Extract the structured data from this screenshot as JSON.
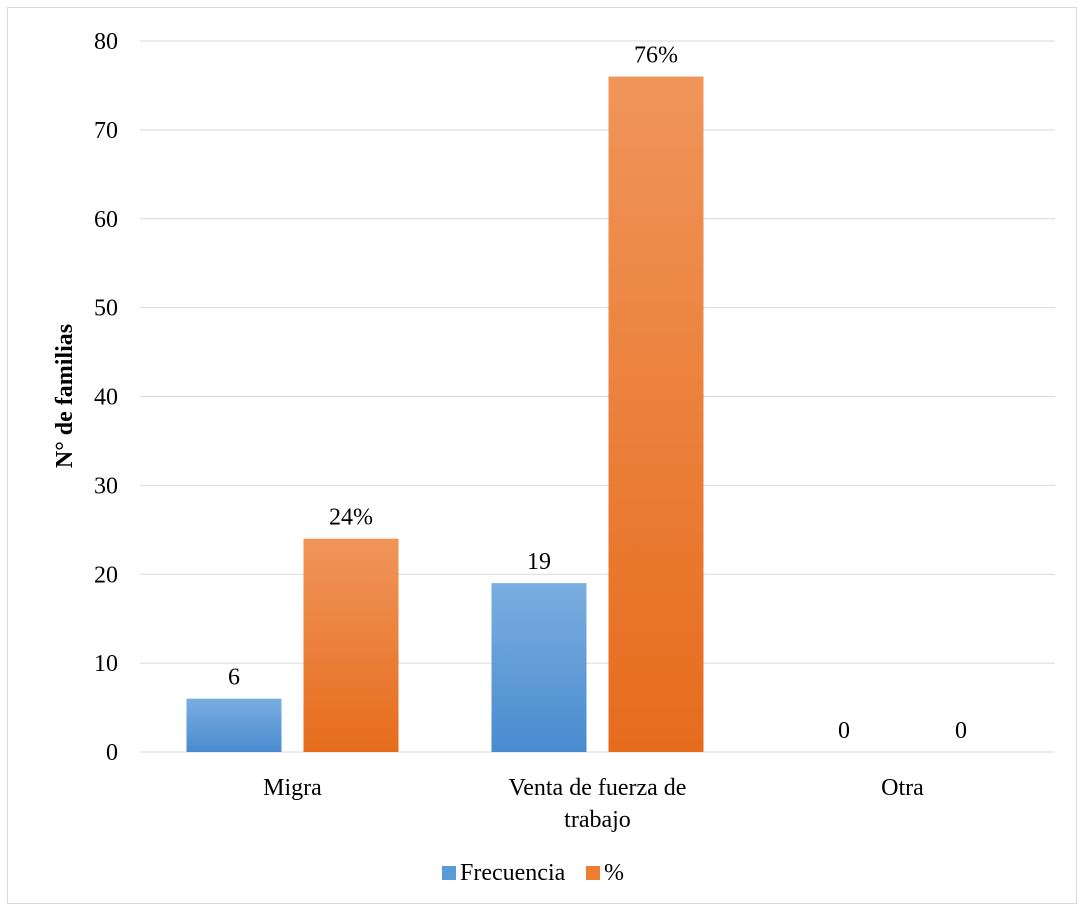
{
  "chart_data": {
    "type": "bar",
    "title": "",
    "xlabel": "",
    "ylabel": "N° de familias",
    "ylim": [
      0,
      80
    ],
    "yticks": [
      "0",
      "10",
      "20",
      "30",
      "40",
      "50",
      "60",
      "70",
      "80"
    ],
    "grid": true,
    "legend_position": "bottom",
    "categories": [
      [
        "Migra"
      ],
      [
        "Venta de fuerza de",
        "trabajo"
      ],
      [
        "Otra"
      ]
    ],
    "series": [
      {
        "name": "Frecuencia",
        "values": [
          6,
          19,
          0
        ],
        "labels": [
          "6",
          "19",
          "0"
        ],
        "color_top": "#7aaee0",
        "color_bottom": "#4a8bcf",
        "color": "#5b9bd5"
      },
      {
        "name": "%",
        "values": [
          24,
          76,
          0
        ],
        "labels": [
          "24%",
          "76%",
          "0"
        ],
        "color_top": "#f0955a",
        "color_bottom": "#e66c1c",
        "color": "#ed7d31"
      }
    ]
  }
}
